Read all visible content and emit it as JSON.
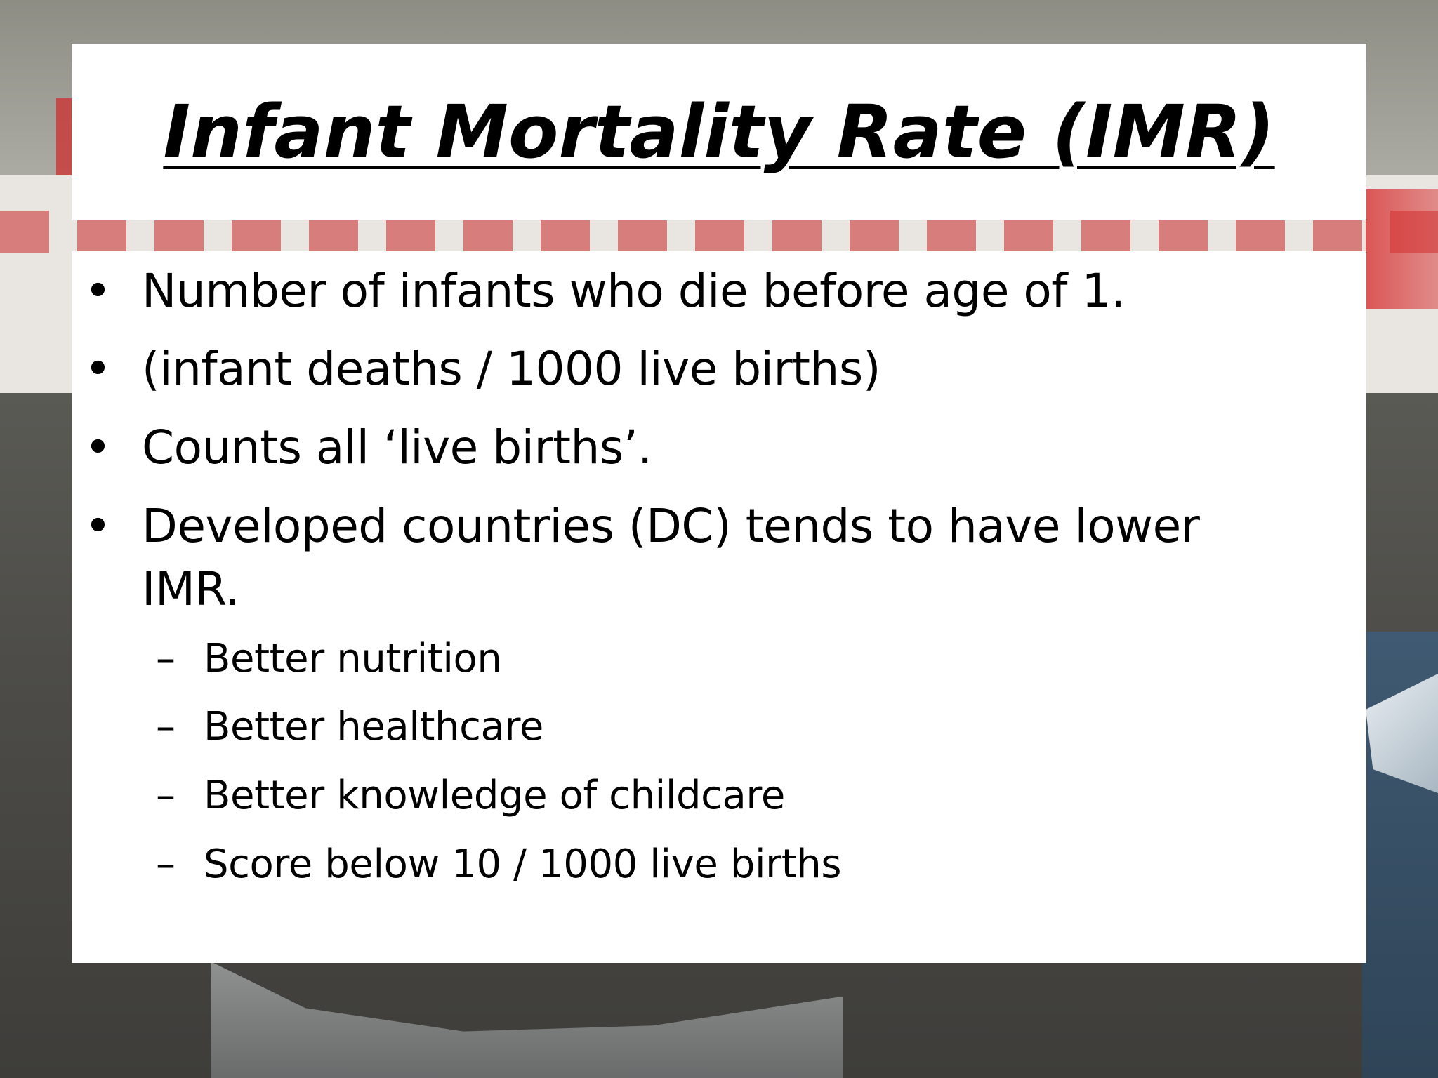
{
  "slide": {
    "title": "Infant Mortality Rate (IMR)",
    "bullets": [
      "Number of infants who die before age of 1.",
      "(infant deaths / 1000 live births)",
      "Counts all ‘live births’.",
      "Developed countries (DC) tends to have lower IMR."
    ],
    "sub_bullets": [
      "Better nutrition",
      "Better healthcare",
      "Better knowledge of childcare",
      "Score below 10 / 1000 live births"
    ],
    "bullet_marker": "•",
    "sub_marker": "–"
  },
  "colors": {
    "box_background": "#ffffff",
    "text": "#000000",
    "accent_red": "#cc2d2d"
  }
}
